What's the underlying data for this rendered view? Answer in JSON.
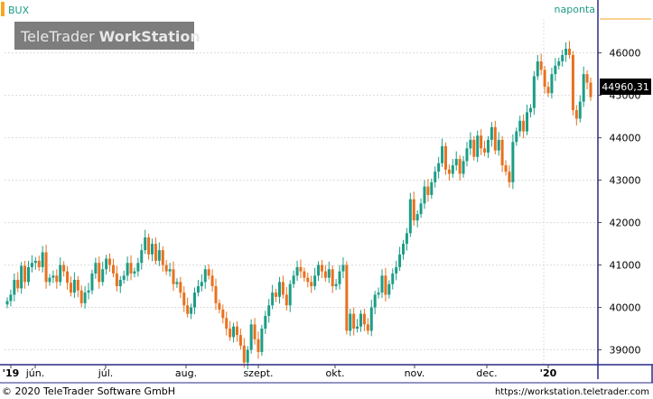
{
  "header": {
    "symbol": "BUX",
    "interval": "naponta",
    "watermark_light": "TeleTrader ",
    "watermark_bold": "WorkStation"
  },
  "footer": {
    "copyright": "© 2020 TeleTrader Software GmbH",
    "url": "https://workstation.teletrader.com"
  },
  "colors": {
    "up": "#1d9d86",
    "down": "#e8711f",
    "grid": "#dcdcdc",
    "frame": "#2a2a8a",
    "last_price_bg": "#000000",
    "watermark_bg": "#7d7d7d",
    "accent_bar": "#f5a623"
  },
  "chart_data": {
    "type": "candlestick",
    "title": "BUX",
    "ylim": [
      38650,
      46800
    ],
    "y_ticks": [
      "46000",
      "45000",
      "44000",
      "43000",
      "42000",
      "41000",
      "40000",
      "39000"
    ],
    "x_ticks": [
      "'19",
      "jún.",
      "júl.",
      "aug.",
      "szept.",
      "okt.",
      "nov.",
      "dec.",
      "'20"
    ],
    "last_price": "44960,31",
    "grid": true,
    "series": [
      {
        "close": [
          40150,
          40300,
          40650,
          40450,
          40980,
          40600,
          40950,
          41050,
          41100,
          40950,
          41300,
          40600,
          40700,
          40750,
          40600,
          41000,
          40850,
          40580,
          40350,
          40650,
          40400,
          40100,
          40350,
          40400,
          40800,
          41050,
          40600,
          40900,
          41150,
          41000,
          40800,
          40500,
          40650,
          40750,
          41050,
          40800,
          40850,
          41050,
          41350,
          41650,
          41250,
          41500,
          41100,
          41350,
          41000,
          40850,
          40900,
          40550,
          40600,
          40350,
          40050,
          39850,
          40000,
          40350,
          40500,
          40600,
          40900,
          40750,
          40500,
          40100,
          39950,
          39750,
          39500,
          39300,
          39550,
          39350,
          39100,
          38700,
          39000,
          39600,
          39250,
          38950,
          39500,
          39800,
          40050,
          40350,
          40250,
          40600,
          40300,
          40050,
          40550,
          40750,
          40950,
          40850,
          40700,
          40600,
          40500,
          40750,
          41000,
          40850,
          40700,
          40900,
          40500,
          40550,
          40850,
          41000,
          39450,
          39850,
          39500,
          39550,
          39850,
          39600,
          39450,
          40000,
          40300,
          40350,
          40750,
          40300,
          40550,
          40800,
          40950,
          41250,
          41500,
          41750,
          42550,
          42050,
          42200,
          42450,
          42850,
          42650,
          42950,
          43200,
          43400,
          43800,
          43250,
          43150,
          43350,
          43500,
          43150,
          43450,
          43750,
          43950,
          43550,
          44050,
          43750,
          43650,
          43950,
          44250,
          43700,
          43950,
          43350,
          43200,
          42950,
          43900,
          44150,
          44400,
          44150,
          44600,
          44700,
          45450,
          45800,
          45600,
          45200,
          45050,
          45500,
          45700,
          45800,
          45950,
          46100,
          45950,
          44650,
          44450,
          44850,
          45500,
          45300,
          44960
        ]
      }
    ]
  }
}
